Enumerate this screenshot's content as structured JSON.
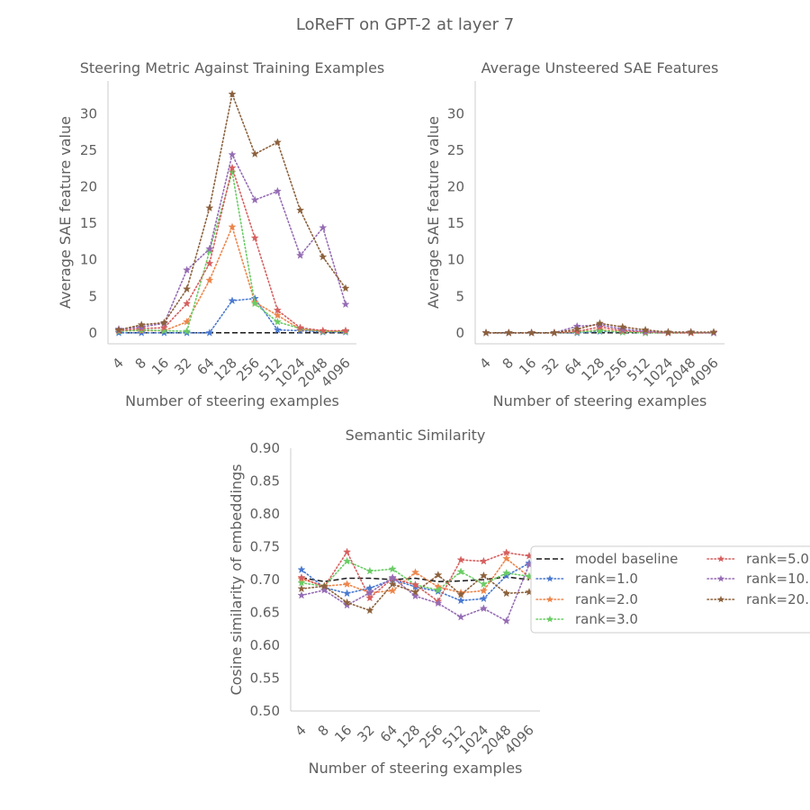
{
  "figure_title": "LoReFT on GPT-2 at layer 7",
  "chart_data": [
    {
      "id": "steering",
      "type": "line",
      "title": "Steering Metric Against Training Examples",
      "xlabel": "Number of steering examples",
      "ylabel": "Average SAE feature value",
      "x_scale": "log2-categorical",
      "categories": [
        "4",
        "8",
        "16",
        "32",
        "64",
        "128",
        "256",
        "512",
        "1024",
        "2048",
        "4096"
      ],
      "ylim": [
        -1.5,
        34.5
      ],
      "yticks": [
        0,
        5,
        10,
        15,
        20,
        25,
        30
      ],
      "baseline": [
        0,
        0,
        0,
        0,
        0,
        0,
        0,
        0,
        0,
        0,
        0
      ],
      "series": [
        {
          "name": "rank=1.0",
          "color": "#4878d0",
          "values": [
            0,
            0,
            0,
            0,
            0,
            4.4,
            4.7,
            0.4,
            0.3,
            0.1,
            0.1
          ]
        },
        {
          "name": "rank=2.0",
          "color": "#ee854a",
          "values": [
            0.3,
            0.3,
            0.3,
            1.5,
            7.2,
            14.5,
            4.2,
            2.4,
            0.5,
            0.2,
            0.2
          ]
        },
        {
          "name": "rank=3.0",
          "color": "#6acc64",
          "values": [
            0.2,
            0.4,
            0.3,
            0.2,
            11.2,
            22.0,
            4.0,
            1.5,
            0.6,
            0.2,
            0.2
          ]
        },
        {
          "name": "rank=5.0",
          "color": "#d65f5f",
          "values": [
            0.3,
            0.6,
            0.7,
            4.0,
            9.5,
            22.6,
            13.0,
            3.1,
            0.7,
            0.3,
            0.3
          ]
        },
        {
          "name": "rank=10.",
          "color": "#956cb4",
          "values": [
            0.5,
            0.8,
            1.3,
            8.6,
            11.5,
            24.4,
            18.2,
            19.4,
            10.6,
            14.4,
            3.9
          ]
        },
        {
          "name": "rank=20.",
          "color": "#8c613c",
          "values": [
            0.4,
            1.1,
            1.4,
            6.0,
            17.1,
            32.7,
            24.5,
            26.1,
            16.8,
            10.4,
            6.1
          ]
        }
      ]
    },
    {
      "id": "unsteered",
      "type": "line",
      "title": "Average Unsteered SAE Features",
      "xlabel": "Number of steering examples",
      "ylabel": "Average SAE feature value",
      "x_scale": "log2-categorical",
      "categories": [
        "4",
        "8",
        "16",
        "32",
        "64",
        "128",
        "256",
        "512",
        "1024",
        "2048",
        "4096"
      ],
      "ylim": [
        -1.5,
        34.5
      ],
      "yticks": [
        0,
        5,
        10,
        15,
        20,
        25,
        30
      ],
      "baseline": [
        0,
        0,
        0,
        0,
        0,
        0,
        0,
        0,
        0,
        0,
        0
      ],
      "series": [
        {
          "name": "rank=1.0",
          "color": "#4878d0",
          "values": [
            0,
            0,
            0,
            0,
            0,
            0.2,
            0.1,
            0,
            0,
            0,
            0
          ]
        },
        {
          "name": "rank=2.0",
          "color": "#ee854a",
          "values": [
            0,
            0,
            0,
            0,
            0.1,
            0.4,
            0.2,
            0.1,
            0,
            0,
            0
          ]
        },
        {
          "name": "rank=3.0",
          "color": "#6acc64",
          "values": [
            0,
            0,
            0,
            0,
            0.1,
            0.3,
            0.1,
            0,
            0,
            0,
            0
          ]
        },
        {
          "name": "rank=5.0",
          "color": "#d65f5f",
          "values": [
            0,
            0,
            0,
            0,
            0.2,
            0.8,
            0.3,
            0.1,
            0,
            0,
            0
          ]
        },
        {
          "name": "rank=10.",
          "color": "#956cb4",
          "values": [
            0,
            0,
            0,
            0,
            0.9,
            1.1,
            0.5,
            0.2,
            0.1,
            0.1,
            0
          ]
        },
        {
          "name": "rank=20.",
          "color": "#8c613c",
          "values": [
            0,
            0,
            0,
            0,
            0.5,
            1.3,
            0.8,
            0.4,
            0.1,
            0.1,
            0.1
          ]
        }
      ]
    },
    {
      "id": "similarity",
      "type": "line",
      "title": "Semantic Similarity",
      "xlabel": "Number of steering examples",
      "ylabel": "Cosine similarity of embeddings",
      "x_scale": "log2-categorical",
      "categories": [
        "4",
        "8",
        "16",
        "32",
        "64",
        "128",
        "256",
        "512",
        "1024",
        "2048",
        "4096"
      ],
      "ylim": [
        0.5,
        0.9
      ],
      "yticks": [
        "0.50",
        "0.55",
        "0.60",
        "0.65",
        "0.70",
        "0.75",
        "0.80",
        "0.85",
        "0.90"
      ],
      "baseline_name": "model baseline",
      "baseline": [
        0.703,
        0.697,
        0.702,
        0.702,
        0.7,
        0.702,
        0.697,
        0.698,
        0.7,
        0.704,
        0.7
      ],
      "series": [
        {
          "name": "rank=1.0",
          "color": "#4878d0",
          "values": [
            0.715,
            0.688,
            0.679,
            0.687,
            0.7,
            0.689,
            0.682,
            0.668,
            0.671,
            0.706,
            0.725
          ]
        },
        {
          "name": "rank=2.0",
          "color": "#ee854a",
          "values": [
            0.701,
            0.69,
            0.693,
            0.68,
            0.683,
            0.711,
            0.689,
            0.68,
            0.683,
            0.732,
            0.704
          ]
        },
        {
          "name": "rank=3.0",
          "color": "#6acc64",
          "values": [
            0.695,
            0.69,
            0.728,
            0.713,
            0.716,
            0.692,
            0.684,
            0.712,
            0.693,
            0.71,
            0.705
          ]
        },
        {
          "name": "rank=5.0",
          "color": "#d65f5f",
          "values": [
            0.703,
            0.689,
            0.742,
            0.672,
            0.702,
            0.692,
            0.667,
            0.73,
            0.728,
            0.741,
            0.736
          ]
        },
        {
          "name": "rank=10.",
          "color": "#956cb4",
          "values": [
            0.676,
            0.684,
            0.661,
            0.68,
            0.703,
            0.675,
            0.664,
            0.643,
            0.656,
            0.637,
            0.723
          ]
        },
        {
          "name": "rank=20.",
          "color": "#8c613c",
          "values": [
            0.686,
            0.69,
            0.665,
            0.653,
            0.693,
            0.681,
            0.707,
            0.677,
            0.706,
            0.679,
            0.681
          ]
        }
      ]
    }
  ],
  "legend": {
    "entries": [
      {
        "label": "model baseline",
        "kind": "baseline",
        "color": "#1a1a1a"
      },
      {
        "label": "rank=1.0",
        "kind": "series",
        "color": "#4878d0"
      },
      {
        "label": "rank=2.0",
        "kind": "series",
        "color": "#ee854a"
      },
      {
        "label": "rank=3.0",
        "kind": "series",
        "color": "#6acc64"
      },
      {
        "label": "rank=5.0",
        "kind": "series",
        "color": "#d65f5f"
      },
      {
        "label": "rank=10.",
        "kind": "series",
        "color": "#956cb4"
      },
      {
        "label": "rank=20.",
        "kind": "series",
        "color": "#8c613c"
      }
    ]
  }
}
